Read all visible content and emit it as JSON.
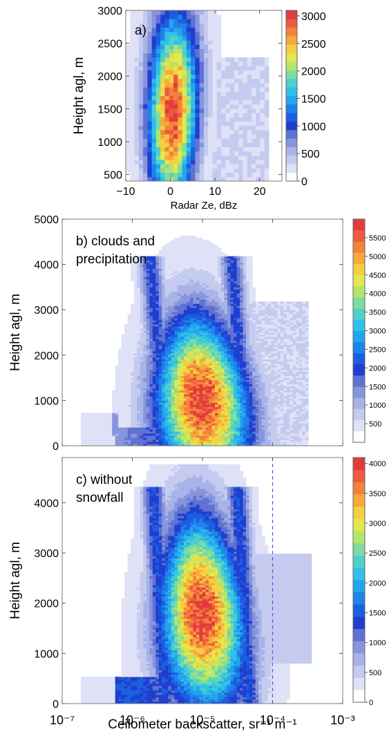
{
  "palette": [
    "#ffffff",
    "#dfe2f6",
    "#c5cbef",
    "#a8b3e8",
    "#8795dc",
    "#5f72d2",
    "#1f3fd0",
    "#1b5fe0",
    "#1f83ea",
    "#23a5ee",
    "#2fc1e6",
    "#4fd0c8",
    "#7fdb9f",
    "#b5e46c",
    "#e2e84e",
    "#f6cf3e",
    "#f7a93a",
    "#f3823a",
    "#ee5a3f",
    "#e23a3e"
  ],
  "chart_data": [
    {
      "id": "a",
      "type": "heatmap",
      "panel_label": "a)",
      "xlabel": "Radar Ze, dBz",
      "ylabel": "Height agl, m",
      "xlim": [
        -10,
        25
      ],
      "ylim": [
        400,
        3000
      ],
      "xticks": [
        {
          "v": -10,
          "label": "−10"
        },
        {
          "v": 0,
          "label": "0"
        },
        {
          "v": 10,
          "label": "10"
        },
        {
          "v": 20,
          "label": "20"
        }
      ],
      "yticks": [
        {
          "v": 500,
          "label": "500"
        },
        {
          "v": 1000,
          "label": "1000"
        },
        {
          "v": 1500,
          "label": "1500"
        },
        {
          "v": 2000,
          "label": "2000"
        },
        {
          "v": 2500,
          "label": "2500"
        },
        {
          "v": 3000,
          "label": "3000"
        }
      ],
      "colorbar": {
        "min": 0,
        "max": 3100,
        "ticks": [
          {
            "v": 0,
            "label": "0"
          },
          {
            "v": 500,
            "label": "500"
          },
          {
            "v": 1000,
            "label": "1000"
          },
          {
            "v": 1500,
            "label": "1500"
          },
          {
            "v": 2000,
            "label": "2000"
          },
          {
            "v": 2500,
            "label": "2500"
          },
          {
            "v": 3000,
            "label": "3000"
          }
        ]
      },
      "peak": {
        "x": 0,
        "y": 1450,
        "value": 3000
      }
    },
    {
      "id": "b",
      "type": "heatmap",
      "panel_label": "b) clouds and precipitation",
      "xlabel": "",
      "ylabel": "Height agl, m",
      "xscale": "log",
      "xlim": [
        1e-07,
        0.001
      ],
      "ylim": [
        0,
        5000
      ],
      "yticks": [
        {
          "v": 0,
          "label": "0"
        },
        {
          "v": 1000,
          "label": "1000"
        },
        {
          "v": 2000,
          "label": "2000"
        },
        {
          "v": 3000,
          "label": "3000"
        },
        {
          "v": 4000,
          "label": "4000"
        },
        {
          "v": 5000,
          "label": "5000"
        }
      ],
      "colorbar": {
        "min": 0,
        "max": 6000,
        "ticks": [
          {
            "v": 500,
            "label": "500"
          },
          {
            "v": 1000,
            "label": "1000"
          },
          {
            "v": 1500,
            "label": "1500"
          },
          {
            "v": 2000,
            "label": "2000"
          },
          {
            "v": 2500,
            "label": "2500"
          },
          {
            "v": 3000,
            "label": "3000"
          },
          {
            "v": 3500,
            "label": "3500"
          },
          {
            "v": 4000,
            "label": "4000"
          },
          {
            "v": 4500,
            "label": "4500"
          },
          {
            "v": 5000,
            "label": "5000"
          },
          {
            "v": 5500,
            "label": "5500"
          }
        ]
      },
      "peak": {
        "x": 1e-05,
        "y": 900,
        "value": 5500
      }
    },
    {
      "id": "c",
      "type": "heatmap",
      "panel_label": "c) without snowfall",
      "xlabel": "Ceilometer backscatter, sr⁻¹ m⁻¹",
      "ylabel": "Height agl, m",
      "xscale": "log",
      "xlim": [
        1e-07,
        0.001
      ],
      "ylim": [
        0,
        4900
      ],
      "xticks": [
        {
          "v": 1e-07,
          "label": "10⁻⁷"
        },
        {
          "v": 1e-06,
          "label": "10⁻⁶"
        },
        {
          "v": 1e-05,
          "label": "10⁻⁵"
        },
        {
          "v": 0.0001,
          "label": "10⁻⁴"
        },
        {
          "v": 0.001,
          "label": "10⁻³"
        }
      ],
      "yticks": [
        {
          "v": 0,
          "label": "0"
        },
        {
          "v": 1000,
          "label": "1000"
        },
        {
          "v": 2000,
          "label": "2000"
        },
        {
          "v": 3000,
          "label": "3000"
        },
        {
          "v": 4000,
          "label": "4000"
        }
      ],
      "colorbar": {
        "min": 0,
        "max": 4100,
        "ticks": [
          {
            "v": 0,
            "label": "0"
          },
          {
            "v": 500,
            "label": "500"
          },
          {
            "v": 1000,
            "label": "1000"
          },
          {
            "v": 1500,
            "label": "1500"
          },
          {
            "v": 2000,
            "label": "2000"
          },
          {
            "v": 2500,
            "label": "2500"
          },
          {
            "v": 3000,
            "label": "3000"
          },
          {
            "v": 3500,
            "label": "3500"
          },
          {
            "v": 4000,
            "label": "4000"
          }
        ]
      },
      "vline_x": 0.0001,
      "peak": {
        "x": 1e-05,
        "y": 1800,
        "value": 4000
      }
    }
  ]
}
